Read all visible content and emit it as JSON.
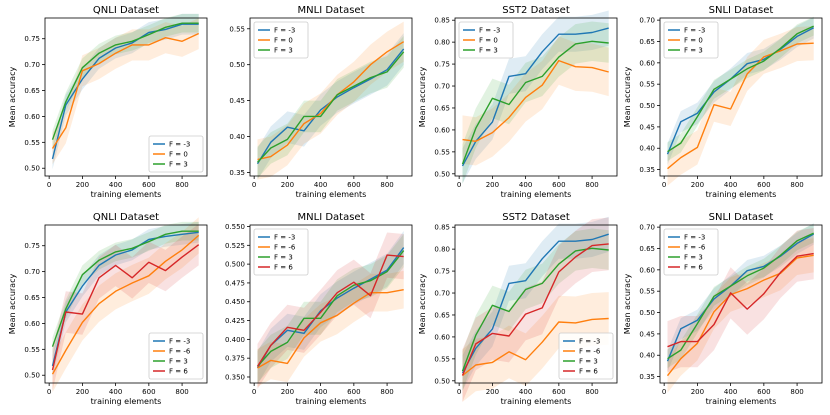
{
  "colors": {
    "F = -3": "#1f77b4",
    "F = 0": "#ff7f0e",
    "F = 3": "#2ca02c",
    "F = -6": "#ff7f0e",
    "F = 6": "#d62728"
  },
  "chart_data": [
    {
      "type": "line",
      "title": "QNLI Dataset",
      "xlabel": "training elements",
      "ylabel": "Mean accuracy",
      "xlim": [
        -25,
        950
      ],
      "ylim": [
        0.485,
        0.79
      ],
      "xticks": [
        0,
        200,
        400,
        600,
        800
      ],
      "xtick_labels": [
        "0",
        "200",
        "400",
        "600",
        "800"
      ],
      "yticks": [
        0.5,
        0.55,
        0.6,
        0.65,
        0.7,
        0.75
      ],
      "ytick_labels": [
        "0.50",
        "0.55",
        "0.60",
        "0.65",
        "0.70",
        "0.75"
      ],
      "legend_loc": "lower-right",
      "x": [
        20,
        100,
        200,
        300,
        400,
        500,
        600,
        700,
        800,
        900
      ],
      "series": [
        {
          "name": "F = -3",
          "values": [
            0.518,
            0.622,
            0.672,
            0.712,
            0.732,
            0.742,
            0.762,
            0.768,
            0.778,
            0.778
          ],
          "band": 0.02
        },
        {
          "name": "F = 0",
          "values": [
            0.538,
            0.578,
            0.688,
            0.702,
            0.722,
            0.738,
            0.738,
            0.752,
            0.745,
            0.76
          ],
          "band": 0.03
        },
        {
          "name": "F = 3",
          "values": [
            0.555,
            0.628,
            0.694,
            0.722,
            0.738,
            0.745,
            0.758,
            0.772,
            0.78,
            0.78
          ],
          "band": 0.018
        }
      ]
    },
    {
      "type": "line",
      "title": "MNLI Dataset",
      "xlabel": "training elements",
      "ylabel": "",
      "xlim": [
        -25,
        950
      ],
      "ylim": [
        0.345,
        0.565
      ],
      "xticks": [
        0,
        200,
        400,
        600,
        800
      ],
      "xtick_labels": [
        "0",
        "200",
        "400",
        "600",
        "800"
      ],
      "yticks": [
        0.35,
        0.4,
        0.45,
        0.5,
        0.55
      ],
      "ytick_labels": [
        "0.35",
        "0.40",
        "0.45",
        "0.50",
        "0.55"
      ],
      "legend_loc": "upper-left",
      "x": [
        20,
        100,
        200,
        300,
        400,
        500,
        600,
        700,
        800,
        900
      ],
      "series": [
        {
          "name": "F = -3",
          "values": [
            0.362,
            0.392,
            0.413,
            0.408,
            0.437,
            0.455,
            0.468,
            0.48,
            0.493,
            0.522
          ],
          "band": 0.022
        },
        {
          "name": "F = 0",
          "values": [
            0.368,
            0.372,
            0.388,
            0.418,
            0.432,
            0.458,
            0.476,
            0.5,
            0.518,
            0.532
          ],
          "band": 0.028
        },
        {
          "name": "F = 3",
          "values": [
            0.364,
            0.384,
            0.396,
            0.428,
            0.428,
            0.458,
            0.47,
            0.482,
            0.49,
            0.518
          ],
          "band": 0.022
        }
      ]
    },
    {
      "type": "line",
      "title": "SST2 Dataset",
      "xlabel": "training elements",
      "ylabel": "Mean accuracy",
      "xlim": [
        -25,
        950
      ],
      "ylim": [
        0.495,
        0.855
      ],
      "xticks": [
        0,
        200,
        400,
        600,
        800
      ],
      "xtick_labels": [
        "0",
        "200",
        "400",
        "600",
        "800"
      ],
      "yticks": [
        0.5,
        0.55,
        0.6,
        0.65,
        0.7,
        0.75,
        0.8,
        0.85
      ],
      "ytick_labels": [
        "0.50",
        "0.55",
        "0.60",
        "0.65",
        "0.70",
        "0.75",
        "0.80",
        "0.85"
      ],
      "legend_loc": "upper-left",
      "x": [
        20,
        100,
        200,
        300,
        400,
        500,
        600,
        700,
        800,
        900
      ],
      "series": [
        {
          "name": "F = -3",
          "values": [
            0.518,
            0.574,
            0.618,
            0.722,
            0.728,
            0.778,
            0.818,
            0.818,
            0.822,
            0.832
          ],
          "band": 0.04
        },
        {
          "name": "F = 0",
          "values": [
            0.578,
            0.574,
            0.594,
            0.628,
            0.674,
            0.702,
            0.758,
            0.744,
            0.742,
            0.732
          ],
          "band": 0.055
        },
        {
          "name": "F = 3",
          "values": [
            0.522,
            0.604,
            0.672,
            0.658,
            0.708,
            0.722,
            0.766,
            0.796,
            0.802,
            0.798
          ],
          "band": 0.045
        }
      ]
    },
    {
      "type": "line",
      "title": "SNLI Dataset",
      "xlabel": "training elements",
      "ylabel": "Mean accuracy",
      "xlim": [
        -25,
        950
      ],
      "ylim": [
        0.335,
        0.705
      ],
      "xticks": [
        0,
        200,
        400,
        600,
        800
      ],
      "xtick_labels": [
        "0",
        "200",
        "400",
        "600",
        "800"
      ],
      "yticks": [
        0.35,
        0.4,
        0.45,
        0.5,
        0.55,
        0.6,
        0.65,
        0.7
      ],
      "ytick_labels": [
        "0.35",
        "0.40",
        "0.45",
        "0.50",
        "0.55",
        "0.60",
        "0.65",
        "0.70"
      ],
      "legend_loc": "upper-left",
      "x": [
        20,
        100,
        200,
        300,
        400,
        500,
        600,
        700,
        800,
        900
      ],
      "series": [
        {
          "name": "F = -3",
          "values": [
            0.386,
            0.462,
            0.482,
            0.532,
            0.562,
            0.598,
            0.608,
            0.632,
            0.662,
            0.682
          ],
          "band": 0.025
        },
        {
          "name": "F = 0",
          "values": [
            0.352,
            0.378,
            0.402,
            0.502,
            0.492,
            0.574,
            0.614,
            0.628,
            0.644,
            0.646
          ],
          "band": 0.04
        },
        {
          "name": "F = 3",
          "values": [
            0.392,
            0.412,
            0.474,
            0.538,
            0.562,
            0.586,
            0.604,
            0.634,
            0.668,
            0.686
          ],
          "band": 0.022
        }
      ]
    },
    {
      "type": "line",
      "title": "QNLI Dataset",
      "xlabel": "training elements",
      "ylabel": "Mean accuracy",
      "xlim": [
        -25,
        950
      ],
      "ylim": [
        0.485,
        0.79
      ],
      "xticks": [
        0,
        200,
        400,
        600,
        800
      ],
      "xtick_labels": [
        "0",
        "200",
        "400",
        "600",
        "800"
      ],
      "yticks": [
        0.5,
        0.55,
        0.6,
        0.65,
        0.7,
        0.75
      ],
      "ytick_labels": [
        "0.50",
        "0.55",
        "0.60",
        "0.65",
        "0.70",
        "0.75"
      ],
      "legend_loc": "lower-right",
      "x": [
        20,
        100,
        200,
        300,
        400,
        500,
        600,
        700,
        800,
        900
      ],
      "series": [
        {
          "name": "F = -3",
          "values": [
            0.518,
            0.622,
            0.672,
            0.712,
            0.732,
            0.742,
            0.762,
            0.768,
            0.772,
            0.776
          ],
          "band": 0.02
        },
        {
          "name": "F = -6",
          "values": [
            0.502,
            0.548,
            0.602,
            0.638,
            0.662,
            0.678,
            0.692,
            0.72,
            0.742,
            0.77
          ],
          "band": 0.035
        },
        {
          "name": "F = 3",
          "values": [
            0.555,
            0.628,
            0.694,
            0.722,
            0.738,
            0.745,
            0.758,
            0.772,
            0.778,
            0.778
          ],
          "band": 0.018
        },
        {
          "name": "F = 6",
          "values": [
            0.51,
            0.622,
            0.618,
            0.688,
            0.712,
            0.688,
            0.718,
            0.702,
            0.728,
            0.752
          ],
          "band": 0.04
        }
      ]
    },
    {
      "type": "line",
      "title": "MNLI Dataset",
      "xlabel": "training elements",
      "ylabel": "",
      "xlim": [
        -25,
        950
      ],
      "ylim": [
        0.342,
        0.552
      ],
      "xticks": [
        0,
        200,
        400,
        600,
        800
      ],
      "xtick_labels": [
        "0",
        "200",
        "400",
        "600",
        "800"
      ],
      "yticks": [
        0.35,
        0.375,
        0.4,
        0.425,
        0.45,
        0.475,
        0.5,
        0.525,
        0.55
      ],
      "ytick_labels": [
        "0.350",
        "0.375",
        "0.400",
        "0.425",
        "0.450",
        "0.475",
        "0.500",
        "0.525",
        "0.550"
      ],
      "legend_loc": "upper-left",
      "x": [
        20,
        100,
        200,
        300,
        400,
        500,
        600,
        700,
        800,
        900
      ],
      "series": [
        {
          "name": "F = -3",
          "values": [
            0.362,
            0.392,
            0.412,
            0.408,
            0.438,
            0.455,
            0.468,
            0.48,
            0.492,
            0.522
          ],
          "band": 0.022
        },
        {
          "name": "F = -6",
          "values": [
            0.362,
            0.372,
            0.368,
            0.402,
            0.422,
            0.432,
            0.448,
            0.462,
            0.462,
            0.466
          ],
          "band": 0.025
        },
        {
          "name": "F = 3",
          "values": [
            0.364,
            0.384,
            0.396,
            0.428,
            0.428,
            0.458,
            0.472,
            0.478,
            0.49,
            0.518
          ],
          "band": 0.022
        },
        {
          "name": "F = 6",
          "values": [
            0.364,
            0.392,
            0.416,
            0.412,
            0.436,
            0.462,
            0.476,
            0.458,
            0.512,
            0.51
          ],
          "band": 0.03
        }
      ]
    },
    {
      "type": "line",
      "title": "SST2 Dataset",
      "xlabel": "training elements",
      "ylabel": "Mean accuracy",
      "xlim": [
        -25,
        950
      ],
      "ylim": [
        0.495,
        0.855
      ],
      "xticks": [
        0,
        200,
        400,
        600,
        800
      ],
      "xtick_labels": [
        "0",
        "200",
        "400",
        "600",
        "800"
      ],
      "yticks": [
        0.5,
        0.55,
        0.6,
        0.65,
        0.7,
        0.75,
        0.8,
        0.85
      ],
      "ytick_labels": [
        "0.50",
        "0.55",
        "0.60",
        "0.65",
        "0.70",
        "0.75",
        "0.80",
        "0.85"
      ],
      "legend_loc": "lower-right",
      "x": [
        20,
        100,
        200,
        300,
        400,
        500,
        600,
        700,
        800,
        900
      ],
      "series": [
        {
          "name": "F = -3",
          "values": [
            0.518,
            0.574,
            0.618,
            0.722,
            0.728,
            0.778,
            0.818,
            0.818,
            0.822,
            0.834
          ],
          "band": 0.04
        },
        {
          "name": "F = -6",
          "values": [
            0.512,
            0.536,
            0.542,
            0.566,
            0.548,
            0.588,
            0.634,
            0.632,
            0.64,
            0.642
          ],
          "band": 0.06
        },
        {
          "name": "F = 3",
          "values": [
            0.522,
            0.604,
            0.672,
            0.658,
            0.708,
            0.722,
            0.766,
            0.796,
            0.802,
            0.798
          ],
          "band": 0.045
        },
        {
          "name": "F = 6",
          "values": [
            0.512,
            0.584,
            0.608,
            0.602,
            0.652,
            0.666,
            0.748,
            0.782,
            0.808,
            0.812
          ],
          "band": 0.06
        }
      ]
    },
    {
      "type": "line",
      "title": "SNLI Dataset",
      "xlabel": "training elements",
      "ylabel": "Mean accuracy",
      "xlim": [
        -25,
        950
      ],
      "ylim": [
        0.335,
        0.705
      ],
      "xticks": [
        0,
        200,
        400,
        600,
        800
      ],
      "xtick_labels": [
        "0",
        "200",
        "400",
        "600",
        "800"
      ],
      "yticks": [
        0.35,
        0.4,
        0.45,
        0.5,
        0.55,
        0.6,
        0.65,
        0.7
      ],
      "ytick_labels": [
        "0.35",
        "0.40",
        "0.45",
        "0.50",
        "0.55",
        "0.60",
        "0.65",
        "0.70"
      ],
      "legend_loc": "upper-left",
      "x": [
        20,
        100,
        200,
        300,
        400,
        500,
        600,
        700,
        800,
        900
      ],
      "series": [
        {
          "name": "F = -3",
          "values": [
            0.386,
            0.462,
            0.482,
            0.532,
            0.562,
            0.598,
            0.608,
            0.632,
            0.662,
            0.684
          ],
          "band": 0.025
        },
        {
          "name": "F = -6",
          "values": [
            0.352,
            0.392,
            0.428,
            0.502,
            0.542,
            0.556,
            0.576,
            0.592,
            0.628,
            0.634
          ],
          "band": 0.04
        },
        {
          "name": "F = 3",
          "values": [
            0.392,
            0.412,
            0.474,
            0.538,
            0.562,
            0.586,
            0.604,
            0.634,
            0.668,
            0.686
          ],
          "band": 0.022
        },
        {
          "name": "F = 6",
          "values": [
            0.42,
            0.432,
            0.432,
            0.472,
            0.546,
            0.508,
            0.544,
            0.594,
            0.632,
            0.638
          ],
          "band": 0.06
        }
      ]
    }
  ]
}
